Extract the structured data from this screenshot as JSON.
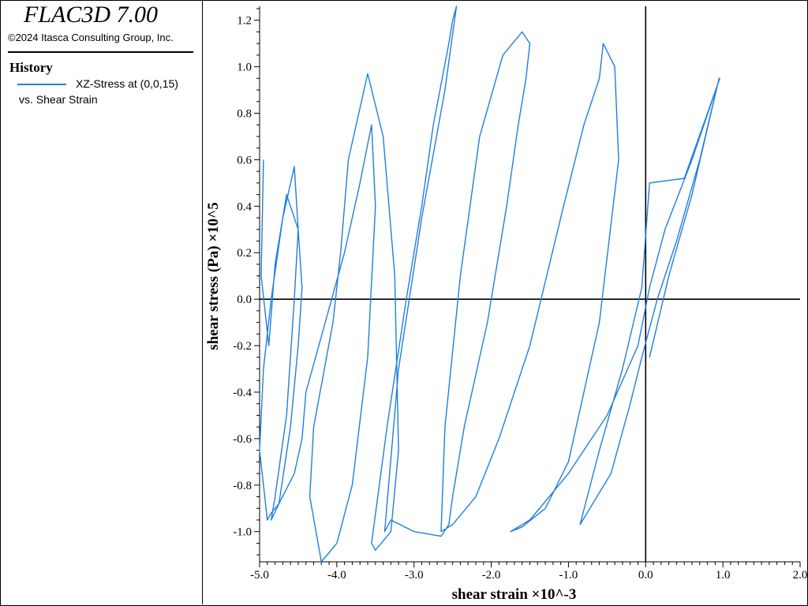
{
  "app": {
    "title": "FLAC3D 7.00",
    "copyright": "©2024 Itasca Consulting Group, Inc."
  },
  "legend": {
    "heading": "History",
    "entry_line1": "XZ-Stress at (0,0,15)",
    "entry_line2": "vs. Shear Strain",
    "color": "#1f7fe0"
  },
  "chart_data": {
    "type": "line",
    "xlabel": "shear strain ×10^-3",
    "ylabel": "shear stress (Pa) ×10^5",
    "xlim": [
      -5.0,
      2.0
    ],
    "ylim": [
      -1.13,
      1.26
    ],
    "x_ticks": [
      "-5.0",
      "-4.0",
      "-3.0",
      "-2.0",
      "-1.0",
      "0.0",
      "1.0",
      "2.0"
    ],
    "y_ticks": [
      "-1.0",
      "-0.8",
      "-0.6",
      "-0.4",
      "-0.2",
      "0.0",
      "0.2",
      "0.4",
      "0.6",
      "0.8",
      "1.0",
      "1.2"
    ],
    "grid": false,
    "series": [
      {
        "color": "#1f7fe0",
        "x": [
          0.05,
          0.3,
          0.6,
          0.95,
          0.7,
          0.4,
          0.15,
          -0.05,
          -0.2,
          -0.45,
          -0.85,
          -0.6,
          -0.3,
          -0.05,
          0.05,
          0.5,
          0.8,
          0.96,
          0.6,
          0.25,
          0.05,
          -0.1,
          -0.5,
          -1.0,
          -1.5,
          -1.75,
          -1.6,
          -1.3,
          -1.0,
          -0.6,
          -0.35,
          -0.4,
          -0.55,
          -0.6,
          -0.8,
          -1.1,
          -1.5,
          -1.9,
          -2.2,
          -2.5,
          -2.65,
          -2.6,
          -2.4,
          -2.15,
          -1.85,
          -1.6,
          -1.5,
          -1.55,
          -1.65,
          -1.8,
          -2.05,
          -2.35,
          -2.5,
          -2.55,
          -2.65,
          -3.0,
          -3.3,
          -3.38,
          -3.2,
          -2.9,
          -2.6,
          -2.45,
          -2.5,
          -2.55,
          -2.75,
          -2.9,
          -3.1,
          -3.35,
          -3.55,
          -3.5,
          -3.3,
          -3.2,
          -3.25,
          -3.4,
          -3.6,
          -3.85,
          -3.95,
          -4.05,
          -4.3,
          -4.35,
          -4.2,
          -4.0,
          -3.8,
          -3.6,
          -3.5,
          -3.55,
          -3.7,
          -3.9,
          -4.15,
          -4.4,
          -4.45,
          -4.55,
          -4.75,
          -4.85,
          -4.8,
          -4.65,
          -4.55,
          -4.5,
          -4.55,
          -4.7,
          -4.85,
          -4.95,
          -5.0,
          -4.9,
          -4.85,
          -4.75,
          -4.6,
          -4.5,
          -4.45,
          -4.5,
          -4.65,
          -4.8,
          -4.88,
          -4.98,
          -4.95
        ],
        "y": [
          -0.25,
          0.1,
          0.45,
          0.95,
          0.6,
          0.25,
          0.0,
          -0.25,
          -0.45,
          -0.75,
          -0.97,
          -0.65,
          -0.3,
          0.05,
          0.5,
          0.52,
          0.8,
          0.95,
          0.6,
          0.3,
          0.05,
          -0.2,
          -0.5,
          -0.75,
          -0.95,
          -1.0,
          -0.98,
          -0.9,
          -0.7,
          -0.1,
          0.6,
          1.0,
          1.1,
          0.95,
          0.75,
          0.35,
          -0.2,
          -0.6,
          -0.85,
          -0.97,
          -1.0,
          -0.55,
          0.1,
          0.7,
          1.05,
          1.15,
          1.1,
          0.95,
          0.75,
          0.4,
          -0.1,
          -0.55,
          -0.85,
          -0.97,
          -1.02,
          -1.0,
          -0.95,
          -1.0,
          -0.3,
          0.35,
          0.9,
          1.26,
          1.2,
          1.1,
          0.75,
          0.4,
          0.0,
          -0.55,
          -1.05,
          -1.08,
          -1.0,
          -0.65,
          0.1,
          0.7,
          0.97,
          0.6,
          0.2,
          -0.1,
          -0.55,
          -0.85,
          -1.13,
          -1.05,
          -0.8,
          -0.25,
          0.4,
          0.75,
          0.5,
          0.2,
          -0.1,
          -0.4,
          -0.6,
          -0.75,
          -0.88,
          -0.95,
          -0.85,
          -0.5,
          0.0,
          0.3,
          0.57,
          0.35,
          0.0,
          -0.3,
          -0.65,
          -0.95,
          -0.92,
          -0.88,
          -0.55,
          -0.2,
          0.05,
          0.3,
          0.45,
          0.15,
          -0.2,
          0.1,
          0.6
        ]
      }
    ]
  }
}
